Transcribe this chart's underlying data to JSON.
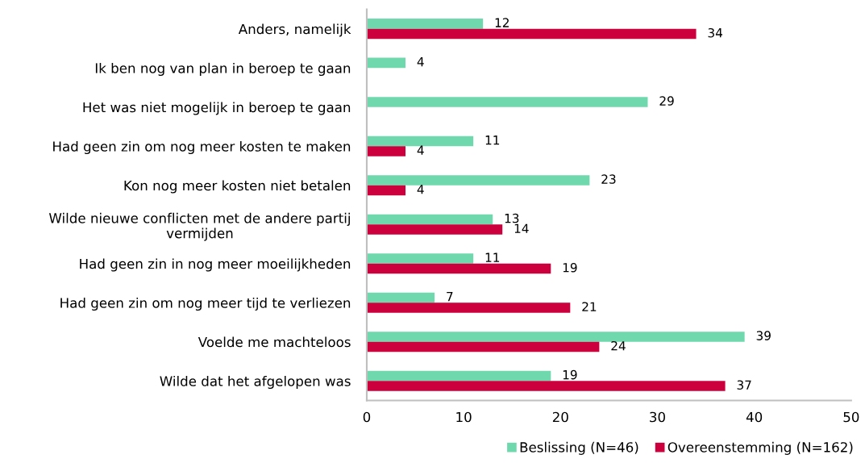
{
  "chart_data": {
    "type": "bar",
    "orientation": "horizontal",
    "categories": [
      "Anders, namelijk",
      "Ik ben nog van plan in beroep te gaan",
      "Het was niet mogelijk in beroep te gaan",
      "Had geen zin om nog meer kosten te maken",
      "Kon nog meer kosten niet betalen",
      "Wilde nieuwe conflicten met de andere partij\nvermijden",
      "Had geen zin in nog meer moeilijkheden",
      "Had geen zin om nog meer tijd te verliezen",
      "Voelde me machteloos",
      "Wilde dat het afgelopen was"
    ],
    "series": [
      {
        "name": "Beslissing (N=46)",
        "color": "#6fd9ad",
        "values": [
          12,
          4,
          29,
          11,
          23,
          13,
          11,
          7,
          39,
          19
        ]
      },
      {
        "name": "Overeenstemming (N=162)",
        "color": "#cc003d",
        "values": [
          34,
          null,
          null,
          4,
          4,
          14,
          19,
          21,
          24,
          37
        ]
      }
    ],
    "xlim": [
      0,
      50
    ],
    "xticks": [
      0,
      10,
      20,
      30,
      40,
      50
    ],
    "data_labels": true,
    "grid": false,
    "legend": "bottom"
  }
}
